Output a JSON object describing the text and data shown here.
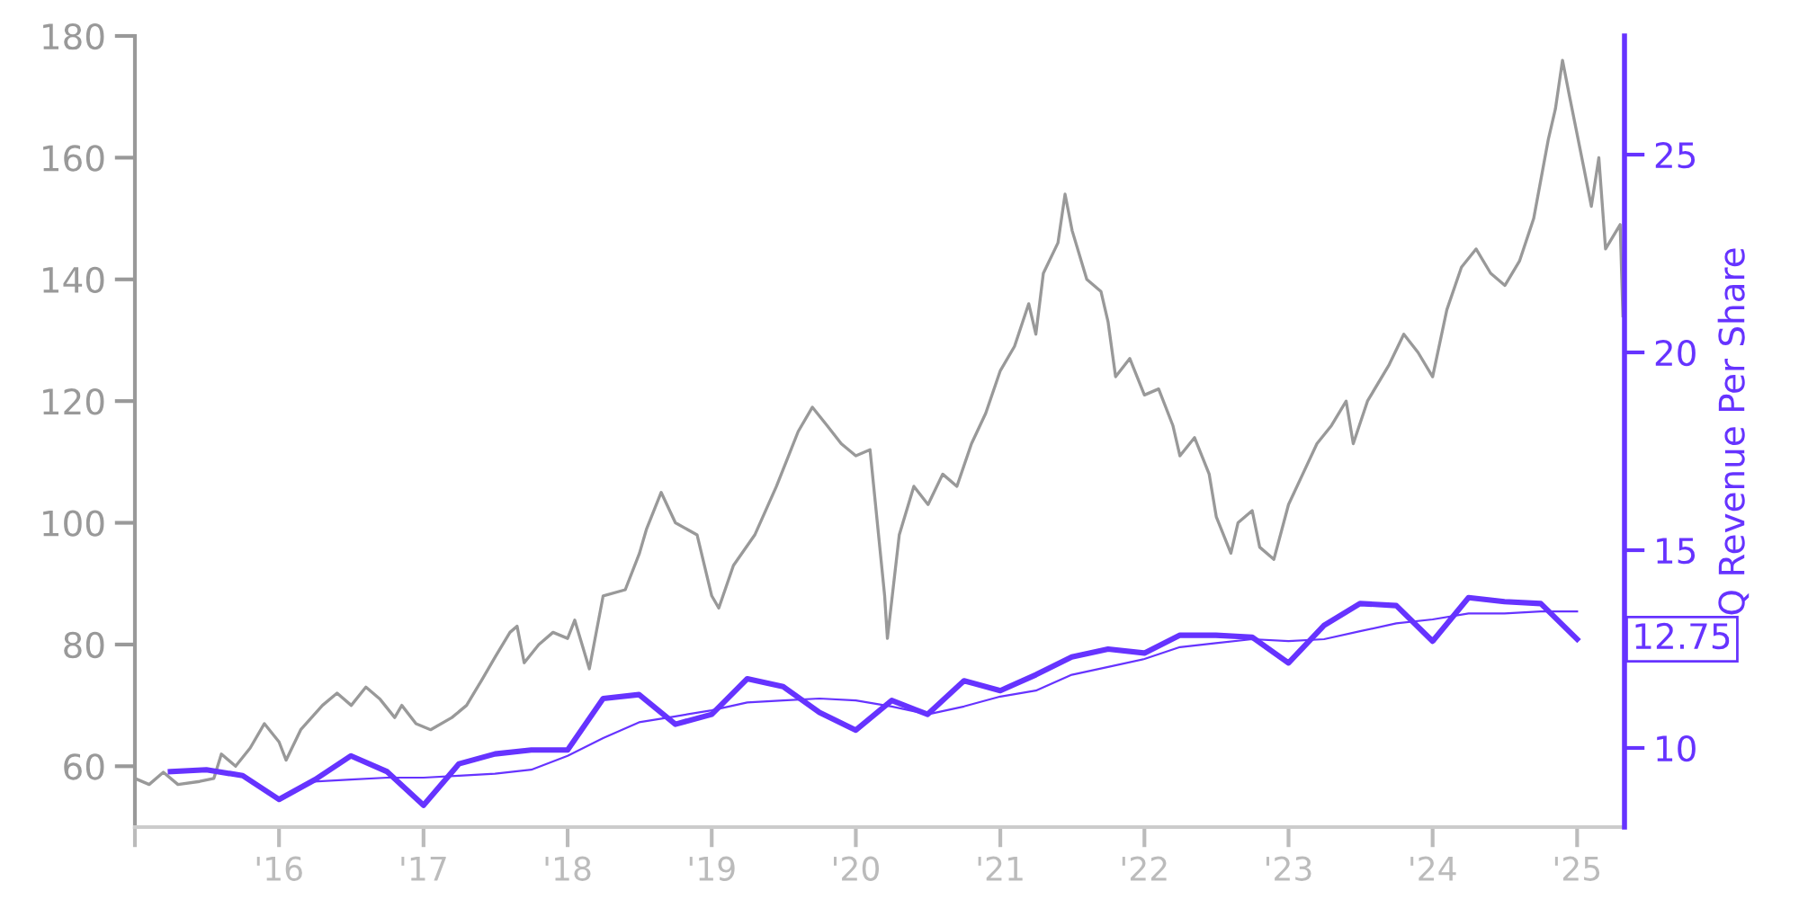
{
  "chart_data": {
    "type": "line",
    "y2label": "Q Revenue Per Share",
    "xlim": [
      "2015-01-01",
      "2025-05-01"
    ],
    "xticks": [
      {
        "value": "2015-01-01",
        "label": null
      },
      {
        "value": "2016-01-01",
        "label": "'16"
      },
      {
        "value": "2017-01-01",
        "label": "'17"
      },
      {
        "value": "2018-01-01",
        "label": "'18"
      },
      {
        "value": "2019-01-01",
        "label": "'19"
      },
      {
        "value": "2020-01-01",
        "label": "'20"
      },
      {
        "value": "2021-01-01",
        "label": "'21"
      },
      {
        "value": "2022-01-01",
        "label": "'22"
      },
      {
        "value": "2023-01-01",
        "label": "'23"
      },
      {
        "value": "2024-01-01",
        "label": "'24"
      },
      {
        "value": "2025-01-01",
        "label": "'25"
      }
    ],
    "ylim": [
      50,
      180
    ],
    "yticks": [
      60,
      80,
      100,
      120,
      140,
      160,
      180
    ],
    "y2lim": [
      8,
      28
    ],
    "y2ticks": [
      10,
      15,
      20,
      25
    ],
    "grid": false,
    "legend": false,
    "series": [
      {
        "color": "#999999",
        "x": [
          "2015-01-01",
          "2015-02-06",
          "2015-03-14",
          "2015-04-20",
          "2015-06-14",
          "2015-07-20",
          "2015-08-08",
          "2015-09-13",
          "2015-10-20",
          "2015-11-25",
          "2016-01-01",
          "2016-01-19",
          "2016-02-25",
          "2016-04-20",
          "2016-05-27",
          "2016-07-02",
          "2016-08-08",
          "2016-09-13",
          "2016-10-20",
          "2016-11-07",
          "2016-12-13",
          "2017-01-19",
          "2017-03-14",
          "2017-04-20",
          "2017-05-27",
          "2017-07-02",
          "2017-08-08",
          "2017-08-26",
          "2017-09-13",
          "2017-10-20",
          "2017-11-25",
          "2018-01-01",
          "2018-01-19",
          "2018-02-25",
          "2018-04-01",
          "2018-05-27",
          "2018-07-02",
          "2018-07-20",
          "2018-08-26",
          "2018-10-01",
          "2018-11-25",
          "2019-01-01",
          "2019-01-19",
          "2019-02-25",
          "2019-04-20",
          "2019-06-14",
          "2019-08-08",
          "2019-09-13",
          "2019-10-20",
          "2019-11-25",
          "2020-01-01",
          "2020-02-06",
          "2020-03-14",
          "2020-03-21",
          "2020-04-20",
          "2020-05-27",
          "2020-07-02",
          "2020-08-08",
          "2020-09-13",
          "2020-10-20",
          "2020-11-25",
          "2021-01-01",
          "2021-02-06",
          "2021-03-14",
          "2021-04-01",
          "2021-04-20",
          "2021-05-27",
          "2021-06-14",
          "2021-07-02",
          "2021-08-08",
          "2021-09-13",
          "2021-10-01",
          "2021-10-20",
          "2021-11-25",
          "2022-01-01",
          "2022-02-06",
          "2022-03-14",
          "2022-04-01",
          "2022-05-08",
          "2022-06-14",
          "2022-07-02",
          "2022-08-08",
          "2022-08-26",
          "2022-10-01",
          "2022-10-20",
          "2022-11-25",
          "2023-01-01",
          "2023-02-06",
          "2023-03-14",
          "2023-04-20",
          "2023-05-27",
          "2023-06-14",
          "2023-07-20",
          "2023-09-13",
          "2023-10-20",
          "2023-11-25",
          "2024-01-01",
          "2024-02-06",
          "2024-03-14",
          "2024-04-20",
          "2024-05-27",
          "2024-07-02",
          "2024-08-08",
          "2024-09-13",
          "2024-10-20",
          "2024-11-07",
          "2024-11-25",
          "2024-12-13",
          "2025-01-19",
          "2025-02-06",
          "2025-02-25",
          "2025-03-14",
          "2025-04-20",
          "2025-04-27"
        ],
        "values": [
          58,
          57,
          59,
          57,
          57.5,
          58,
          62,
          60,
          63,
          67,
          64,
          61,
          66,
          70,
          72,
          70,
          73,
          71,
          68,
          70,
          67,
          66,
          68,
          70,
          74,
          78,
          82,
          83,
          77,
          80,
          82,
          81,
          84,
          76,
          88,
          89,
          95,
          99,
          105,
          100,
          98,
          88,
          86,
          93,
          98,
          106,
          115,
          119,
          116,
          113,
          111,
          112,
          88,
          81,
          98,
          106,
          103,
          108,
          106,
          113,
          118,
          125,
          129,
          136,
          131,
          141,
          146,
          154,
          148,
          140,
          138,
          133,
          124,
          127,
          121,
          122,
          116,
          111,
          114,
          108,
          101,
          95,
          100,
          102,
          96,
          94,
          103,
          108,
          113,
          116,
          120,
          113,
          120,
          126,
          131,
          128,
          124,
          135,
          142,
          145,
          141,
          139,
          143,
          150,
          163,
          168,
          176,
          170,
          158,
          152,
          160,
          145,
          149,
          134
        ]
      },
      {
        "axis": "y2",
        "color": "#6633ff",
        "x": [
          "2015-04",
          "2015-07",
          "2015-10",
          "2016-01",
          "2016-04",
          "2016-07",
          "2016-10",
          "2017-01",
          "2017-04",
          "2017-07",
          "2017-10",
          "2018-01",
          "2018-04",
          "2018-07",
          "2018-10",
          "2019-01",
          "2019-04",
          "2019-07",
          "2019-10",
          "2020-01",
          "2020-04",
          "2020-07",
          "2020-10",
          "2021-01",
          "2021-04",
          "2021-07",
          "2021-10",
          "2022-01",
          "2022-04",
          "2022-07",
          "2022-10",
          "2023-01",
          "2023-04",
          "2023-07",
          "2023-10",
          "2024-01",
          "2024-04",
          "2024-07",
          "2024-10",
          "2025-01"
        ],
        "values": [
          9.4,
          9.45,
          9.3,
          8.7,
          9.2,
          9.8,
          9.4,
          8.55,
          9.6,
          9.85,
          9.95,
          9.95,
          11.25,
          11.35,
          10.6,
          10.85,
          11.75,
          11.55,
          10.9,
          10.45,
          11.2,
          10.85,
          11.7,
          11.45,
          11.85,
          12.3,
          12.5,
          12.4,
          12.85,
          12.85,
          12.8,
          12.15,
          13.1,
          13.65,
          13.6,
          12.7,
          13.8,
          13.7,
          13.65,
          12.75
        ]
      },
      {
        "axis": "y2",
        "color": "#6633ff",
        "x": [
          "2016-04",
          "2016-07",
          "2016-10",
          "2017-01",
          "2017-04",
          "2017-07",
          "2017-10",
          "2018-01",
          "2018-04",
          "2018-07",
          "2018-10",
          "2019-01",
          "2019-04",
          "2019-07",
          "2019-10",
          "2020-01",
          "2020-04",
          "2020-07",
          "2020-10",
          "2021-01",
          "2021-04",
          "2021-07",
          "2021-10",
          "2022-01",
          "2022-04",
          "2022-07",
          "2022-10",
          "2023-01",
          "2023-04",
          "2023-07",
          "2023-10",
          "2024-01",
          "2024-04",
          "2024-07",
          "2024-10",
          "2025-01"
        ],
        "values": [
          9.15,
          9.2,
          9.25,
          9.25,
          9.3,
          9.35,
          9.45,
          9.8,
          10.25,
          10.65,
          10.8,
          10.95,
          11.15,
          11.2,
          11.25,
          11.2,
          11.05,
          10.85,
          11.05,
          11.3,
          11.45,
          11.85,
          12.05,
          12.25,
          12.55,
          12.65,
          12.75,
          12.7,
          12.75,
          12.95,
          13.15,
          13.25,
          13.4,
          13.4,
          13.45,
          13.45
        ]
      }
    ],
    "annotations": [
      "12.75"
    ]
  }
}
